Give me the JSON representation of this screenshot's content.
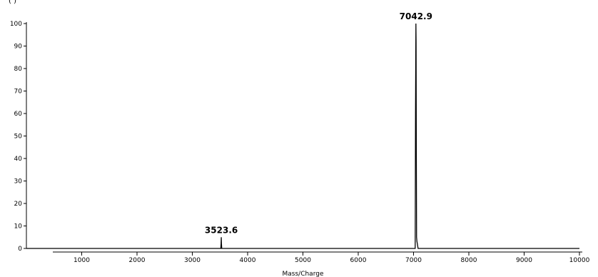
{
  "chart_data": {
    "type": "line",
    "title": "",
    "xlabel": "Mass/Charge",
    "ylabel": "",
    "xlim": [
      0,
      10000
    ],
    "ylim": [
      0,
      100
    ],
    "x_ticks": [
      1000,
      2000,
      3000,
      4000,
      5000,
      6000,
      7000,
      8000,
      9000,
      10000
    ],
    "y_ticks": [
      0,
      10,
      20,
      30,
      40,
      50,
      60,
      70,
      80,
      90,
      100
    ],
    "grid": false,
    "series": [
      {
        "values": [
          {
            "x": 0,
            "y": 0
          },
          {
            "x": 3515,
            "y": 0
          },
          {
            "x": 3520,
            "y": 2
          },
          {
            "x": 3523.6,
            "y": 5
          },
          {
            "x": 3527,
            "y": 2
          },
          {
            "x": 3532,
            "y": 0
          },
          {
            "x": 7030,
            "y": 0
          },
          {
            "x": 7036,
            "y": 60
          },
          {
            "x": 7042.9,
            "y": 100
          },
          {
            "x": 7046,
            "y": 92
          },
          {
            "x": 7050,
            "y": 47
          },
          {
            "x": 7055,
            "y": 5
          },
          {
            "x": 7062,
            "y": 3
          },
          {
            "x": 7070,
            "y": 2
          },
          {
            "x": 7082,
            "y": 0
          },
          {
            "x": 10000,
            "y": 0
          }
        ]
      }
    ],
    "annotations": [
      {
        "text": "7042.9",
        "x": 7042.9,
        "y": 100
      },
      {
        "text": "3523.6",
        "x": 3523.6,
        "y": 5
      }
    ]
  },
  "colors": {
    "line": "#000000",
    "axis": "#000000",
    "background": "#ffffff"
  }
}
